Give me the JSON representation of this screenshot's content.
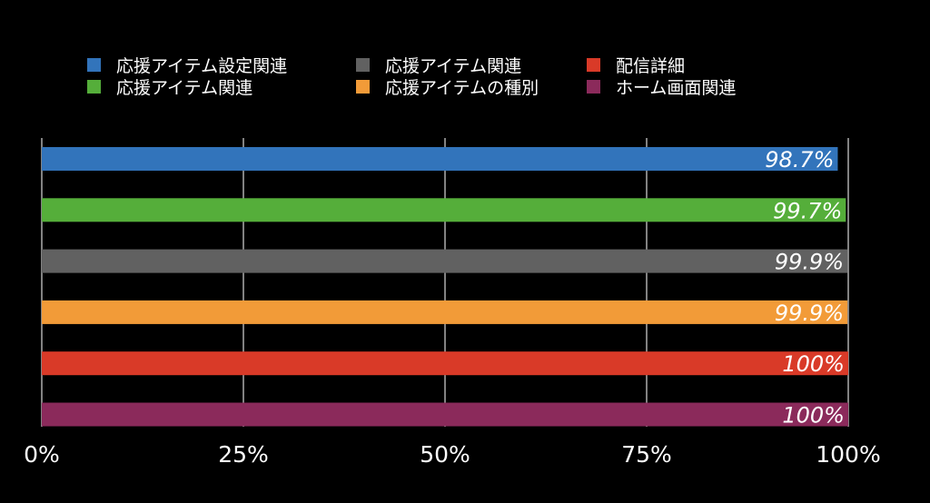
{
  "chart_data": {
    "type": "bar",
    "orientation": "horizontal",
    "title": "",
    "xlabel": "",
    "ylabel": "",
    "xlim": [
      0,
      100
    ],
    "x_ticks": [
      "0%",
      "25%",
      "50%",
      "75%",
      "100%"
    ],
    "grid": true,
    "legend_position": "top",
    "series": [
      {
        "name": "応援アイテム設定関連",
        "value": 98.7,
        "label": "98.7%",
        "color": "#3274bb"
      },
      {
        "name": "応援アイテム関連",
        "value": 99.7,
        "label": "99.7%",
        "color": "#55ae3a"
      },
      {
        "name": "応援アイテム関連",
        "value": 99.9,
        "label": "99.9%",
        "color": "#616161"
      },
      {
        "name": "応援アイテムの種別",
        "value": 99.9,
        "label": "99.9%",
        "color": "#f29b38"
      },
      {
        "name": "配信詳細",
        "value": 100,
        "label": "100%",
        "color": "#d93a28"
      },
      {
        "name": "ホーム画面関連",
        "value": 100,
        "label": "100%",
        "color": "#8b2a5b"
      }
    ]
  }
}
